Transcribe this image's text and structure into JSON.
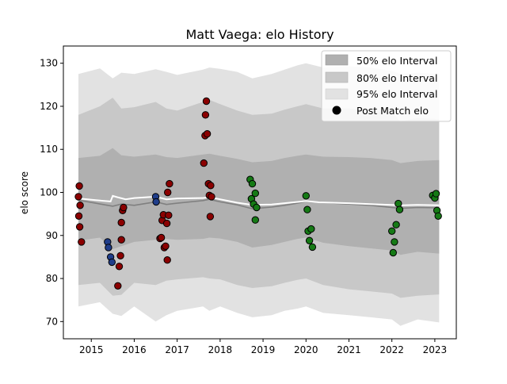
{
  "chart_data": {
    "type": "scatter",
    "title": "Matt Vaega: elo History",
    "xlabel": "",
    "ylabel": "elo score",
    "xlim": [
      2014.35,
      2023.5
    ],
    "ylim": [
      66,
      134
    ],
    "x_ticks": [
      2015,
      2016,
      2017,
      2018,
      2019,
      2020,
      2021,
      2022,
      2023
    ],
    "x_tick_labels": [
      "2015",
      "2016",
      "2017",
      "2018",
      "2019",
      "2020",
      "2021",
      "2022",
      "2023"
    ],
    "y_ticks": [
      70,
      80,
      90,
      100,
      110,
      120,
      130
    ],
    "y_tick_labels": [
      "70",
      "80",
      "90",
      "100",
      "110",
      "120",
      "130"
    ],
    "grid": false,
    "legend_position": "top-right",
    "legend": [
      {
        "label": "50% elo Interval",
        "kind": "band",
        "color": "#b0b0b0"
      },
      {
        "label": "80% elo Interval",
        "kind": "band",
        "color": "#c8c8c8"
      },
      {
        "label": "95% elo Interval",
        "kind": "band",
        "color": "#e2e2e2"
      },
      {
        "label": "Post Match elo",
        "kind": "marker",
        "color": "#000000"
      }
    ],
    "mean_line": {
      "color": "#808080",
      "x": [
        2014.7,
        2015.1,
        2015.5,
        2015.7,
        2016.0,
        2016.5,
        2016.75,
        2017.0,
        2017.6,
        2017.75,
        2018.0,
        2018.4,
        2018.75,
        2019.2,
        2019.5,
        2019.8,
        2020.0,
        2020.4,
        2021.0,
        2021.5,
        2022.2,
        2022.6,
        2023.1
      ],
      "y": [
        98.2,
        97.5,
        96.8,
        97.3,
        97.0,
        97.8,
        97.2,
        97.5,
        98.1,
        98.4,
        97.8,
        97.1,
        96.2,
        96.6,
        97.0,
        97.5,
        97.9,
        97.6,
        97.3,
        97.0,
        96.3,
        96.5,
        96.4
      ]
    },
    "expected_line": {
      "color": "#ffffff",
      "x": [
        2014.7,
        2015.1,
        2015.45,
        2015.5,
        2015.6,
        2015.8,
        2016.0,
        2016.5,
        2016.75,
        2017.0,
        2017.6,
        2017.75,
        2018.0,
        2018.4,
        2018.75,
        2019.2,
        2019.5,
        2020.0,
        2020.3,
        2021.0,
        2021.5,
        2022.2,
        2022.6,
        2023.1
      ],
      "y": [
        98.6,
        98.2,
        97.9,
        99.2,
        98.9,
        98.4,
        98.7,
        99.0,
        98.4,
        98.6,
        98.7,
        98.9,
        98.4,
        97.6,
        97.1,
        97.2,
        97.5,
        98.0,
        97.7,
        97.5,
        97.3,
        97.0,
        97.1,
        97.0
      ]
    },
    "bands": [
      {
        "name": "95% elo Interval",
        "color": "#e2e2e2",
        "x": [
          2014.7,
          2015.2,
          2015.5,
          2015.7,
          2016.0,
          2016.5,
          2016.75,
          2017.0,
          2017.6,
          2017.75,
          2018.0,
          2018.4,
          2018.75,
          2019.2,
          2019.5,
          2019.8,
          2020.0,
          2020.4,
          2021.0,
          2021.5,
          2022.0,
          2022.2,
          2022.6,
          2023.1
        ],
        "upper": [
          127.5,
          128.8,
          126.5,
          127.8,
          127.5,
          128.6,
          128.0,
          127.3,
          128.5,
          129.0,
          128.7,
          128.0,
          126.5,
          127.5,
          128.5,
          129.5,
          130.0,
          129.0,
          129.3,
          129.0,
          128.2,
          127.5,
          127.8,
          127.5
        ],
        "lower": [
          73.5,
          74.5,
          71.8,
          71.3,
          73.5,
          70.0,
          71.5,
          72.5,
          73.5,
          72.5,
          73.5,
          72.0,
          71.0,
          71.5,
          72.5,
          73.0,
          73.5,
          72.0,
          71.5,
          71.0,
          70.5,
          69.0,
          70.5,
          69.8
        ]
      },
      {
        "name": "80% elo Interval",
        "color": "#c8c8c8",
        "x": [
          2014.7,
          2015.2,
          2015.5,
          2015.7,
          2016.0,
          2016.5,
          2016.75,
          2017.0,
          2017.6,
          2017.75,
          2018.0,
          2018.4,
          2018.75,
          2019.2,
          2019.5,
          2019.8,
          2020.0,
          2020.4,
          2021.0,
          2021.5,
          2022.0,
          2022.2,
          2022.6,
          2023.1
        ],
        "upper": [
          118.0,
          120.0,
          122.0,
          119.5,
          119.8,
          121.0,
          119.5,
          119.0,
          121.0,
          121.5,
          120.5,
          119.0,
          118.0,
          118.3,
          119.2,
          120.0,
          120.5,
          119.5,
          119.5,
          119.0,
          118.5,
          116.5,
          117.3,
          117.0
        ],
        "lower": [
          78.5,
          79.0,
          76.0,
          76.2,
          79.0,
          78.5,
          79.5,
          79.8,
          80.3,
          80.0,
          79.8,
          78.5,
          77.8,
          78.2,
          79.0,
          79.7,
          80.0,
          78.5,
          77.5,
          77.0,
          76.5,
          75.5,
          76.0,
          76.3
        ]
      },
      {
        "name": "50% elo Interval",
        "color": "#b0b0b0",
        "x": [
          2014.7,
          2015.2,
          2015.5,
          2015.7,
          2016.0,
          2016.5,
          2016.75,
          2017.0,
          2017.6,
          2017.75,
          2018.0,
          2018.4,
          2018.75,
          2019.2,
          2019.5,
          2019.8,
          2020.0,
          2020.4,
          2021.0,
          2021.5,
          2022.0,
          2022.2,
          2022.6,
          2023.1
        ],
        "upper": [
          108.0,
          108.5,
          110.3,
          108.6,
          108.3,
          108.8,
          108.2,
          108.0,
          108.8,
          109.0,
          108.5,
          107.8,
          107.0,
          107.3,
          108.0,
          108.5,
          108.8,
          108.3,
          108.2,
          108.0,
          107.5,
          106.8,
          107.3,
          107.5
        ],
        "lower": [
          88.8,
          89.5,
          86.8,
          87.5,
          88.5,
          89.0,
          89.2,
          89.0,
          89.2,
          89.5,
          89.3,
          88.5,
          87.2,
          87.8,
          88.5,
          89.2,
          89.5,
          88.3,
          87.5,
          87.0,
          86.5,
          85.5,
          86.2,
          85.8
        ]
      }
    ],
    "series": [
      {
        "color": "#8b0000",
        "points": [
          [
            2014.72,
            101.5
          ],
          [
            2014.7,
            99.0
          ],
          [
            2014.74,
            97.0
          ],
          [
            2014.71,
            94.5
          ],
          [
            2014.73,
            92.0
          ],
          [
            2014.77,
            88.5
          ],
          [
            2015.62,
            78.3
          ],
          [
            2015.65,
            82.8
          ],
          [
            2015.68,
            85.3
          ],
          [
            2015.7,
            89.0
          ],
          [
            2015.7,
            93.0
          ],
          [
            2015.73,
            95.8
          ],
          [
            2015.75,
            96.5
          ],
          [
            2016.6,
            89.3
          ],
          [
            2016.63,
            89.5
          ],
          [
            2016.65,
            93.5
          ],
          [
            2016.68,
            94.8
          ],
          [
            2016.7,
            87.2
          ],
          [
            2016.73,
            87.5
          ],
          [
            2016.76,
            92.8
          ],
          [
            2016.77,
            84.3
          ],
          [
            2016.78,
            100.0
          ],
          [
            2016.8,
            94.7
          ],
          [
            2016.82,
            102.0
          ],
          [
            2017.62,
            106.8
          ],
          [
            2017.65,
            113.2
          ],
          [
            2017.66,
            118.0
          ],
          [
            2017.68,
            121.2
          ],
          [
            2017.7,
            113.6
          ],
          [
            2017.73,
            102.0
          ],
          [
            2017.75,
            99.3
          ],
          [
            2017.78,
            101.6
          ],
          [
            2017.77,
            94.4
          ],
          [
            2017.8,
            99.0
          ]
        ]
      },
      {
        "color": "#1f3d8a",
        "points": [
          [
            2015.38,
            88.5
          ],
          [
            2015.4,
            87.2
          ],
          [
            2015.45,
            85.0
          ],
          [
            2015.48,
            83.8
          ],
          [
            2016.5,
            99.0
          ],
          [
            2016.51,
            97.8
          ]
        ]
      },
      {
        "color": "#157a15",
        "points": [
          [
            2018.7,
            103.0
          ],
          [
            2018.73,
            98.5
          ],
          [
            2018.75,
            102.0
          ],
          [
            2018.78,
            97.3
          ],
          [
            2018.82,
            99.8
          ],
          [
            2018.85,
            96.5
          ],
          [
            2018.82,
            93.6
          ],
          [
            2020.0,
            99.2
          ],
          [
            2020.03,
            96.0
          ],
          [
            2020.05,
            91.0
          ],
          [
            2020.08,
            88.8
          ],
          [
            2020.12,
            91.5
          ],
          [
            2020.15,
            87.3
          ],
          [
            2022.0,
            91.0
          ],
          [
            2022.03,
            86.0
          ],
          [
            2022.06,
            88.5
          ],
          [
            2022.1,
            92.5
          ],
          [
            2022.15,
            97.4
          ],
          [
            2022.18,
            96.0
          ],
          [
            2022.95,
            99.3
          ],
          [
            2023.0,
            98.7
          ],
          [
            2023.03,
            99.7
          ],
          [
            2023.05,
            95.8
          ],
          [
            2023.08,
            94.5
          ]
        ]
      }
    ]
  }
}
